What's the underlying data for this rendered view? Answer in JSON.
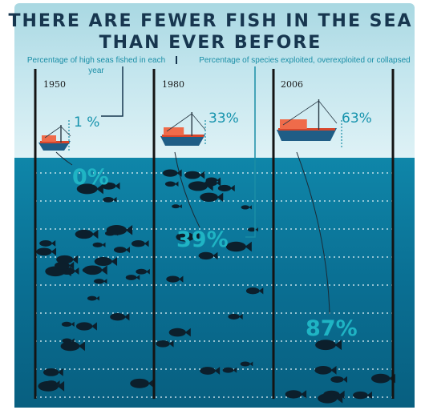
{
  "chart_data": {
    "type": "infographic",
    "title_line1": "There are fewer fish in the sea",
    "title_line2": "than ever before",
    "legend": [
      "Percentage of high seas fished in each year",
      "Percentage of species exploited, overexploited or collapsed"
    ],
    "categories": [
      "1950",
      "1980",
      "2006"
    ],
    "series": [
      {
        "name": "Percentage of high seas fished in each year",
        "values": [
          1,
          33,
          63
        ],
        "labels": [
          "1 %",
          "33%",
          "63%"
        ]
      },
      {
        "name": "Percentage of species exploited, overexploited or collapsed",
        "values": [
          0,
          39,
          87
        ],
        "labels": [
          "0%",
          "39%",
          "87%"
        ]
      }
    ],
    "colors": {
      "sea": "#0a6f93",
      "fish": "#0c1f2c",
      "boat_hull": "#1f5d86",
      "boat_stripe": "#d8462b",
      "label": "#1693ad",
      "depth_label": "#1fb4c4"
    }
  }
}
